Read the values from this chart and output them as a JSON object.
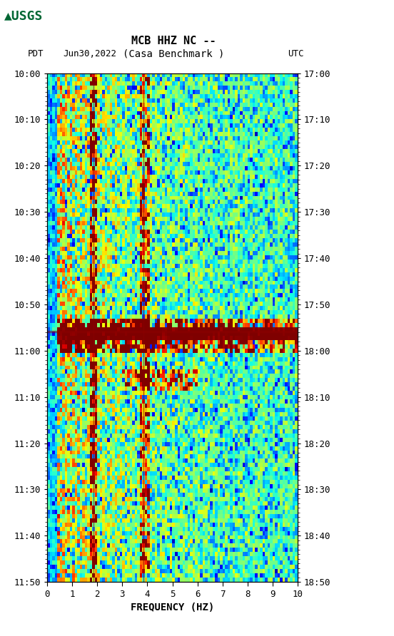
{
  "title_line1": "MCB HHZ NC --",
  "title_line2": "(Casa Benchmark )",
  "left_label": "PDT",
  "date_label": "Jun30,2022",
  "right_label": "UTC",
  "freq_label": "FREQUENCY (HZ)",
  "freq_min": 0,
  "freq_max": 10,
  "freq_ticks": [
    0,
    1,
    2,
    3,
    4,
    5,
    6,
    7,
    8,
    9,
    10
  ],
  "time_start_left": "10:00",
  "time_end_left": "11:50",
  "time_start_right": "17:00",
  "time_end_right": "18:50",
  "left_yticks": [
    "10:00",
    "10:10",
    "10:20",
    "10:30",
    "10:40",
    "10:50",
    "11:00",
    "11:10",
    "11:20",
    "11:30",
    "11:40",
    "11:50"
  ],
  "right_yticks": [
    "17:00",
    "17:10",
    "17:20",
    "17:30",
    "17:40",
    "17:50",
    "18:00",
    "18:10",
    "18:20",
    "18:30",
    "18:40",
    "18:50"
  ],
  "bg_color": "#ffffff",
  "plot_bg_color": "#000080",
  "black_panel_color": "#000000",
  "usgs_green": "#006633",
  "spectrogram_seed": 42,
  "n_freq_bins": 100,
  "n_time_bins": 120,
  "vertical_line_freqs": [
    1.8,
    3.85
  ],
  "horizontal_line_times": [
    60,
    65
  ],
  "colormap": "jet"
}
